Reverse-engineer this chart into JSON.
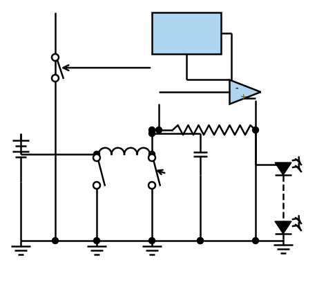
{
  "fig_width": 4.6,
  "fig_height": 4.28,
  "dpi": 100,
  "bg_color": "#ffffff",
  "line_color": "#000000",
  "lw": 1.8,
  "box_color": "#aed6f1",
  "xlim": [
    0,
    46
  ],
  "ylim": [
    0,
    42.8
  ]
}
